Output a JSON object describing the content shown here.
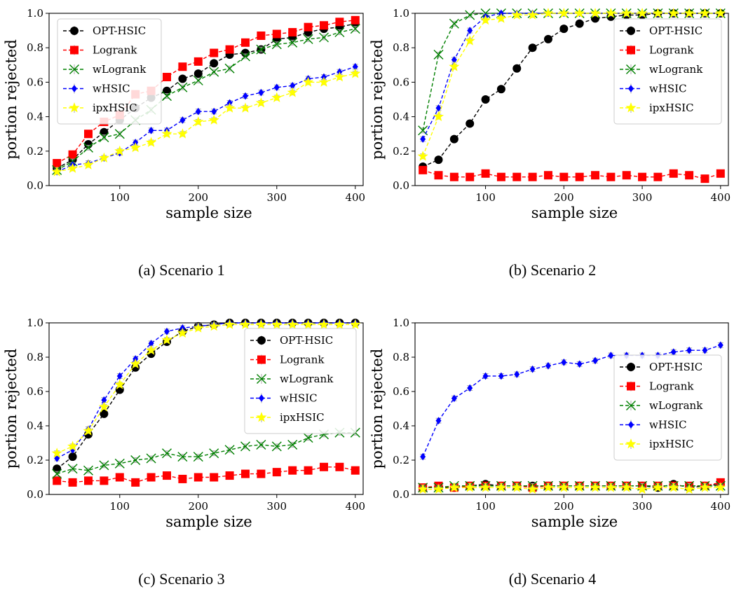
{
  "figure": {
    "marker_styles": {
      "OPT-HSIC": {
        "color": "#000000",
        "marker": "circle"
      },
      "Logrank": {
        "color": "#ff0000",
        "marker": "square"
      },
      "wLogrank": {
        "color": "#008000",
        "marker": "x"
      },
      "wHSIC": {
        "color": "#0000ff",
        "marker": "diamond"
      },
      "ipxHSIC": {
        "color": "#ffff00",
        "marker": "star"
      }
    },
    "errorbar_color": "#aaaaaa"
  },
  "chart_data": [
    {
      "type": "line",
      "caption": "(a) Scenario 1",
      "xlabel": "sample size",
      "ylabel": "portion rejected",
      "xlim": [
        10,
        410
      ],
      "ylim": [
        0.0,
        1.0
      ],
      "xticks": [
        100,
        200,
        300,
        400
      ],
      "yticks": [
        0.0,
        0.2,
        0.4,
        0.6,
        0.8,
        1.0
      ],
      "ytick_labels": [
        "0.0",
        "0.2",
        "0.4",
        "0.6",
        "0.8",
        "1.0"
      ],
      "legend": "top-left",
      "x": [
        20,
        40,
        60,
        80,
        100,
        120,
        140,
        160,
        180,
        200,
        220,
        240,
        260,
        280,
        300,
        320,
        340,
        360,
        380,
        400
      ],
      "series": [
        {
          "name": "OPT-HSIC",
          "values": [
            0.1,
            0.15,
            0.24,
            0.31,
            0.38,
            0.45,
            0.51,
            0.55,
            0.62,
            0.65,
            0.71,
            0.76,
            0.77,
            0.79,
            0.85,
            0.86,
            0.89,
            0.91,
            0.92,
            0.94
          ]
        },
        {
          "name": "Logrank",
          "values": [
            0.13,
            0.18,
            0.3,
            0.37,
            0.41,
            0.53,
            0.55,
            0.63,
            0.69,
            0.72,
            0.77,
            0.79,
            0.83,
            0.87,
            0.88,
            0.89,
            0.92,
            0.93,
            0.95,
            0.96
          ]
        },
        {
          "name": "wLogrank",
          "values": [
            0.09,
            0.14,
            0.22,
            0.28,
            0.3,
            0.38,
            0.44,
            0.52,
            0.57,
            0.61,
            0.66,
            0.68,
            0.75,
            0.79,
            0.82,
            0.83,
            0.85,
            0.86,
            0.89,
            0.91
          ]
        },
        {
          "name": "wHSIC",
          "values": [
            0.08,
            0.12,
            0.13,
            0.16,
            0.19,
            0.25,
            0.32,
            0.32,
            0.38,
            0.43,
            0.43,
            0.48,
            0.52,
            0.54,
            0.57,
            0.58,
            0.62,
            0.63,
            0.66,
            0.69
          ]
        },
        {
          "name": "ipxHSIC",
          "values": [
            0.08,
            0.1,
            0.12,
            0.16,
            0.2,
            0.22,
            0.25,
            0.3,
            0.3,
            0.37,
            0.38,
            0.45,
            0.45,
            0.48,
            0.51,
            0.54,
            0.6,
            0.6,
            0.63,
            0.65
          ]
        }
      ]
    },
    {
      "type": "line",
      "caption": "(b) Scenario 2",
      "xlabel": "sample size",
      "ylabel": "portion rejected",
      "xlim": [
        10,
        410
      ],
      "ylim": [
        0.0,
        1.0
      ],
      "xticks": [
        100,
        200,
        300,
        400
      ],
      "yticks": [
        0.0,
        0.2,
        0.4,
        0.6,
        0.8,
        1.0
      ],
      "ytick_labels": [
        "0.0",
        "0.2",
        "0.4",
        "0.6",
        "0.8",
        "1.0"
      ],
      "legend": "right",
      "x": [
        20,
        40,
        60,
        80,
        100,
        120,
        140,
        160,
        180,
        200,
        220,
        240,
        260,
        280,
        300,
        320,
        340,
        360,
        380,
        400
      ],
      "series": [
        {
          "name": "OPT-HSIC",
          "values": [
            0.11,
            0.15,
            0.27,
            0.36,
            0.5,
            0.56,
            0.68,
            0.8,
            0.85,
            0.91,
            0.94,
            0.97,
            0.98,
            0.99,
            0.99,
            1.0,
            1.0,
            1.0,
            1.0,
            1.0
          ]
        },
        {
          "name": "Logrank",
          "values": [
            0.09,
            0.06,
            0.05,
            0.05,
            0.07,
            0.05,
            0.05,
            0.05,
            0.06,
            0.05,
            0.05,
            0.06,
            0.05,
            0.06,
            0.05,
            0.05,
            0.07,
            0.06,
            0.04,
            0.07
          ]
        },
        {
          "name": "wLogrank",
          "values": [
            0.32,
            0.76,
            0.94,
            0.99,
            1.0,
            1.0,
            1.0,
            1.0,
            1.0,
            1.0,
            1.0,
            1.0,
            1.0,
            1.0,
            1.0,
            1.0,
            1.0,
            1.0,
            1.0,
            1.0
          ]
        },
        {
          "name": "wHSIC",
          "values": [
            0.27,
            0.45,
            0.73,
            0.9,
            0.98,
            1.0,
            1.0,
            1.0,
            1.0,
            1.0,
            1.0,
            1.0,
            1.0,
            1.0,
            1.0,
            1.0,
            1.0,
            1.0,
            1.0,
            1.0
          ]
        },
        {
          "name": "ipxHSIC",
          "values": [
            0.17,
            0.4,
            0.69,
            0.84,
            0.96,
            0.97,
            0.99,
            0.99,
            1.0,
            1.0,
            1.0,
            1.0,
            1.0,
            1.0,
            1.0,
            1.0,
            1.0,
            1.0,
            1.0,
            1.0
          ]
        }
      ]
    },
    {
      "type": "line",
      "caption": "(c) Scenario 3",
      "xlabel": "sample size",
      "ylabel": "portion rejected",
      "xlim": [
        10,
        410
      ],
      "ylim": [
        0.0,
        1.0
      ],
      "xticks": [
        100,
        200,
        300,
        400
      ],
      "yticks": [
        0.0,
        0.2,
        0.4,
        0.6,
        0.8,
        1.0
      ],
      "ytick_labels": [
        "0.0",
        "0.2",
        "0.4",
        "0.6",
        "0.8",
        "1.0"
      ],
      "legend": "right",
      "x": [
        20,
        40,
        60,
        80,
        100,
        120,
        140,
        160,
        180,
        200,
        220,
        240,
        260,
        280,
        300,
        320,
        340,
        360,
        380,
        400
      ],
      "series": [
        {
          "name": "OPT-HSIC",
          "values": [
            0.15,
            0.22,
            0.35,
            0.47,
            0.61,
            0.74,
            0.82,
            0.89,
            0.95,
            0.98,
            0.99,
            1.0,
            1.0,
            1.0,
            1.0,
            1.0,
            1.0,
            1.0,
            1.0,
            1.0
          ]
        },
        {
          "name": "Logrank",
          "values": [
            0.08,
            0.07,
            0.08,
            0.08,
            0.1,
            0.07,
            0.1,
            0.11,
            0.09,
            0.1,
            0.1,
            0.11,
            0.12,
            0.12,
            0.13,
            0.14,
            0.14,
            0.16,
            0.16,
            0.14
          ]
        },
        {
          "name": "wLogrank",
          "values": [
            0.12,
            0.15,
            0.14,
            0.17,
            0.18,
            0.2,
            0.21,
            0.24,
            0.22,
            0.22,
            0.24,
            0.26,
            0.28,
            0.29,
            0.28,
            0.29,
            0.33,
            0.35,
            0.36,
            0.36
          ]
        },
        {
          "name": "wHSIC",
          "values": [
            0.21,
            0.26,
            0.38,
            0.55,
            0.69,
            0.79,
            0.88,
            0.95,
            0.97,
            0.98,
            0.99,
            1.0,
            1.0,
            1.0,
            1.0,
            1.0,
            1.0,
            1.0,
            1.0,
            1.0
          ]
        },
        {
          "name": "ipxHSIC",
          "values": [
            0.24,
            0.28,
            0.37,
            0.51,
            0.64,
            0.76,
            0.84,
            0.9,
            0.94,
            0.97,
            0.98,
            0.99,
            0.99,
            0.99,
            0.99,
            0.99,
            0.99,
            0.99,
            0.99,
            0.99
          ]
        }
      ]
    },
    {
      "type": "line",
      "caption": "(d) Scenario 4",
      "xlabel": "sample size",
      "ylabel": "portion rejected",
      "xlim": [
        10,
        410
      ],
      "ylim": [
        0.0,
        1.0
      ],
      "xticks": [
        100,
        200,
        300,
        400
      ],
      "yticks": [
        0.0,
        0.2,
        0.4,
        0.6,
        0.8,
        1.0
      ],
      "ytick_labels": [
        "0.0",
        "0.2",
        "0.4",
        "0.6",
        "0.8",
        "1.0"
      ],
      "legend": "right",
      "x": [
        20,
        40,
        60,
        80,
        100,
        120,
        140,
        160,
        180,
        200,
        220,
        240,
        260,
        280,
        300,
        320,
        340,
        360,
        380,
        400
      ],
      "series": [
        {
          "name": "OPT-HSIC",
          "values": [
            0.04,
            0.04,
            0.04,
            0.05,
            0.06,
            0.05,
            0.05,
            0.05,
            0.05,
            0.05,
            0.05,
            0.05,
            0.05,
            0.05,
            0.05,
            0.04,
            0.06,
            0.04,
            0.05,
            0.06
          ]
        },
        {
          "name": "Logrank",
          "values": [
            0.04,
            0.05,
            0.04,
            0.05,
            0.05,
            0.05,
            0.05,
            0.04,
            0.05,
            0.05,
            0.05,
            0.05,
            0.05,
            0.05,
            0.05,
            0.05,
            0.05,
            0.05,
            0.05,
            0.07
          ]
        },
        {
          "name": "wLogrank",
          "values": [
            0.04,
            0.04,
            0.05,
            0.05,
            0.05,
            0.05,
            0.05,
            0.05,
            0.05,
            0.05,
            0.05,
            0.05,
            0.05,
            0.05,
            0.05,
            0.05,
            0.05,
            0.05,
            0.05,
            0.05
          ]
        },
        {
          "name": "wHSIC",
          "values": [
            0.22,
            0.43,
            0.56,
            0.62,
            0.69,
            0.69,
            0.7,
            0.73,
            0.75,
            0.77,
            0.76,
            0.78,
            0.81,
            0.81,
            0.81,
            0.81,
            0.83,
            0.84,
            0.84,
            0.87
          ]
        },
        {
          "name": "ipxHSIC",
          "values": [
            0.03,
            0.03,
            0.04,
            0.04,
            0.04,
            0.04,
            0.04,
            0.03,
            0.04,
            0.04,
            0.04,
            0.04,
            0.04,
            0.04,
            0.03,
            0.04,
            0.04,
            0.03,
            0.04,
            0.04
          ]
        }
      ]
    }
  ]
}
